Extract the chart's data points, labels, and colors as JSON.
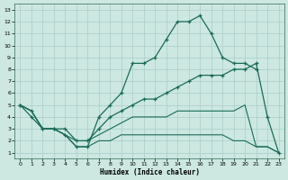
{
  "xlabel": "Humidex (Indice chaleur)",
  "bg_color": "#cce8e0",
  "grid_color": "#aacccc",
  "line_color": "#1a6b5a",
  "xlim": [
    -0.5,
    23.5
  ],
  "ylim": [
    0.5,
    13.5
  ],
  "xticks": [
    0,
    1,
    2,
    3,
    4,
    5,
    6,
    7,
    8,
    9,
    10,
    11,
    12,
    13,
    14,
    15,
    16,
    17,
    18,
    19,
    20,
    21,
    22,
    23
  ],
  "yticks": [
    1,
    2,
    3,
    4,
    5,
    6,
    7,
    8,
    9,
    10,
    11,
    12,
    13
  ],
  "line1_x": [
    0,
    1,
    2,
    3,
    4,
    5,
    6,
    7,
    8,
    9,
    10,
    11,
    12,
    13,
    14,
    15,
    16,
    17,
    18,
    19,
    20,
    21,
    22,
    23
  ],
  "line1_y": [
    5,
    4,
    3,
    3,
    2.5,
    1.5,
    1.5,
    4,
    5,
    6,
    8.5,
    8.5,
    9,
    10.5,
    12,
    12,
    12.5,
    11,
    9,
    8.5,
    8.5,
    8,
    null,
    null
  ],
  "line2_x": [
    0,
    1,
    2,
    3,
    4,
    5,
    6,
    7,
    8,
    9,
    10,
    11,
    12,
    13,
    14,
    15,
    16,
    17,
    18,
    19,
    20,
    21,
    22,
    23
  ],
  "line2_y": [
    5,
    4.5,
    3,
    3,
    3,
    2,
    2,
    3,
    4,
    4.5,
    5,
    5.5,
    5.5,
    6,
    6.5,
    7,
    7.5,
    7.5,
    7.5,
    8,
    8,
    8.5,
    4,
    1
  ],
  "line3_x": [
    0,
    1,
    2,
    3,
    4,
    5,
    6,
    7,
    8,
    9,
    10,
    11,
    12,
    13,
    14,
    15,
    16,
    17,
    18,
    19,
    20,
    21,
    22,
    23
  ],
  "line3_y": [
    5,
    4.5,
    3,
    3,
    2.5,
    2,
    2,
    2.5,
    3,
    3.5,
    4,
    4,
    4,
    4,
    4.5,
    4.5,
    4.5,
    4.5,
    4.5,
    4.5,
    5,
    1.5,
    1.5,
    1
  ],
  "line4_x": [
    0,
    1,
    2,
    3,
    4,
    5,
    6,
    7,
    8,
    9,
    10,
    11,
    12,
    13,
    14,
    15,
    16,
    17,
    18,
    19,
    20,
    21,
    22,
    23
  ],
  "line4_y": [
    5,
    4.5,
    3,
    3,
    2.5,
    1.5,
    1.5,
    2,
    2,
    2.5,
    2.5,
    2.5,
    2.5,
    2.5,
    2.5,
    2.5,
    2.5,
    2.5,
    2.5,
    2,
    2,
    1.5,
    1.5,
    1
  ]
}
